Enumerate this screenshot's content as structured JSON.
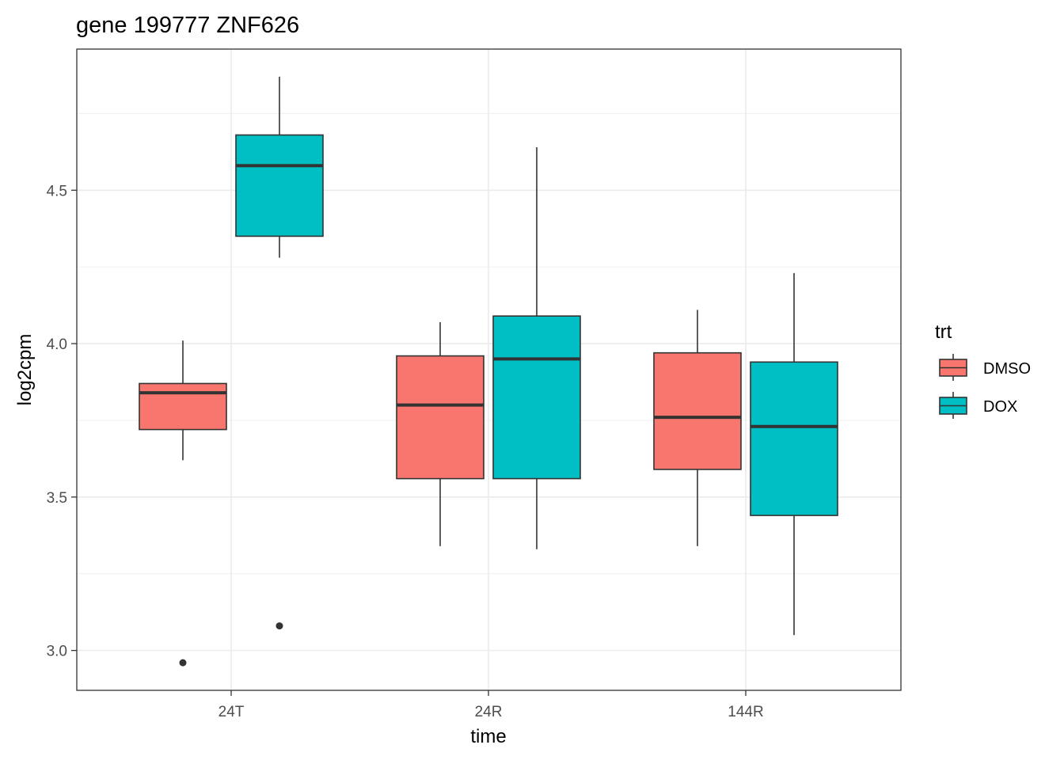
{
  "chart_data": {
    "type": "boxplot",
    "title": "gene 199777 ZNF626",
    "xlabel": "time",
    "ylabel": "log2cpm",
    "categories": [
      "24T",
      "24R",
      "144R"
    ],
    "ylim": [
      2.87,
      4.96
    ],
    "y_ticks": [
      3.0,
      3.5,
      4.0,
      4.5
    ],
    "y_tick_labels": [
      "3.0",
      "3.5",
      "4.0",
      "4.5"
    ],
    "grid": true,
    "legend": {
      "title": "trt",
      "position": "right"
    },
    "series": [
      {
        "name": "DMSO",
        "color": "#F8766D",
        "boxes": [
          {
            "category": "24T",
            "lower_whisker": 3.62,
            "q1": 3.72,
            "median": 3.84,
            "q3": 3.87,
            "upper_whisker": 4.01,
            "outliers": [
              2.96
            ]
          },
          {
            "category": "24R",
            "lower_whisker": 3.34,
            "q1": 3.56,
            "median": 3.8,
            "q3": 3.96,
            "upper_whisker": 4.07,
            "outliers": []
          },
          {
            "category": "144R",
            "lower_whisker": 3.34,
            "q1": 3.59,
            "median": 3.76,
            "q3": 3.97,
            "upper_whisker": 4.11,
            "outliers": []
          }
        ]
      },
      {
        "name": "DOX",
        "color": "#00BFC4",
        "boxes": [
          {
            "category": "24T",
            "lower_whisker": 4.28,
            "q1": 4.35,
            "median": 4.58,
            "q3": 4.68,
            "upper_whisker": 4.87,
            "outliers": [
              3.08
            ]
          },
          {
            "category": "24R",
            "lower_whisker": 3.33,
            "q1": 3.56,
            "median": 3.95,
            "q3": 4.09,
            "upper_whisker": 4.64,
            "outliers": []
          },
          {
            "category": "144R",
            "lower_whisker": 3.05,
            "q1": 3.44,
            "median": 3.73,
            "q3": 3.94,
            "upper_whisker": 4.23,
            "outliers": []
          }
        ]
      }
    ]
  }
}
